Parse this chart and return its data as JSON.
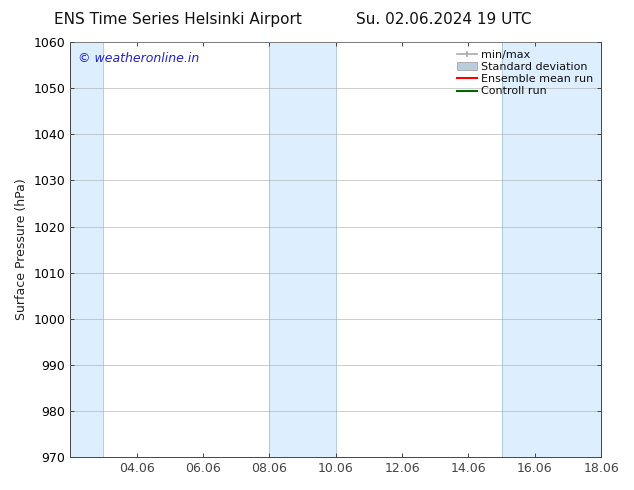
{
  "title_left": "ENS Time Series Helsinki Airport",
  "title_right": "Su. 02.06.2024 19 UTC",
  "ylabel": "Surface Pressure (hPa)",
  "ylim": [
    970,
    1060
  ],
  "yticks": [
    970,
    980,
    990,
    1000,
    1010,
    1020,
    1030,
    1040,
    1050,
    1060
  ],
  "xlim": [
    0,
    16
  ],
  "xtick_labels": [
    "04.06",
    "06.06",
    "08.06",
    "10.06",
    "12.06",
    "14.06",
    "16.06",
    "18.06"
  ],
  "xtick_positions": [
    2,
    4,
    6,
    8,
    10,
    12,
    14,
    16
  ],
  "shaded_regions": [
    {
      "x_start": 0,
      "x_end": 1,
      "color": "#ddeeff"
    },
    {
      "x_start": 6,
      "x_end": 8,
      "color": "#ddeeff"
    },
    {
      "x_start": 13,
      "x_end": 16,
      "color": "#ddeeff"
    }
  ],
  "watermark_text": "© weatheronline.in",
  "watermark_color": "#2222cc",
  "background_color": "#ffffff",
  "legend_items": [
    {
      "label": "min/max",
      "color": "#aaaaaa"
    },
    {
      "label": "Standard deviation",
      "color": "#bbccdd"
    },
    {
      "label": "Ensemble mean run",
      "color": "#ff0000"
    },
    {
      "label": "Controll run",
      "color": "#006600"
    }
  ],
  "grid_color": "#aaaaaa",
  "tick_color": "#444444",
  "spine_color": "#444444",
  "title_fontsize": 11,
  "ylabel_fontsize": 9,
  "tick_fontsize": 9,
  "legend_fontsize": 8
}
